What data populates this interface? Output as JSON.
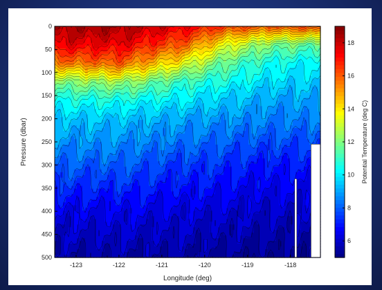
{
  "chart_data": {
    "type": "heatmap",
    "title": "",
    "xlabel": "Longitude (deg)",
    "ylabel": "Pressure (dbar)",
    "colorbar_label": "Potential Temperature (deg C)",
    "xlim": [
      -123.5,
      -117.3
    ],
    "ylim": [
      500,
      0
    ],
    "y_inverted": true,
    "x_ticks": [
      "-123",
      "-122",
      "-121",
      "-120",
      "-119",
      "-118"
    ],
    "x_tick_values": [
      -123,
      -122,
      -121,
      -120,
      -119,
      -118
    ],
    "y_ticks": [
      "0",
      "50",
      "100",
      "150",
      "200",
      "250",
      "300",
      "350",
      "400",
      "450",
      "500"
    ],
    "y_tick_values": [
      0,
      50,
      100,
      150,
      200,
      250,
      300,
      350,
      400,
      450,
      500
    ],
    "color_range": [
      5,
      19
    ],
    "colorbar_ticks": [
      "6",
      "8",
      "10",
      "12",
      "14",
      "16",
      "18"
    ],
    "colorbar_tick_values": [
      6,
      8,
      10,
      12,
      14,
      16,
      18
    ],
    "colormap": "jet",
    "contour_interval": 0.5,
    "temperature_profiles": [
      {
        "longitude": -123.5,
        "depth": [
          0,
          40,
          80,
          120,
          160,
          200,
          300,
          400,
          500
        ],
        "temperature": [
          18.5,
          17.5,
          15.5,
          12.0,
          10.5,
          9.5,
          8.0,
          6.5,
          5.5
        ]
      },
      {
        "longitude": -122.0,
        "depth": [
          0,
          40,
          80,
          120,
          160,
          200,
          300,
          400,
          500
        ],
        "temperature": [
          18.5,
          17.5,
          16.0,
          12.5,
          10.5,
          9.5,
          8.0,
          6.5,
          5.5
        ]
      },
      {
        "longitude": -120.5,
        "depth": [
          0,
          40,
          80,
          120,
          160,
          200,
          300,
          400,
          500
        ],
        "temperature": [
          17.5,
          16.0,
          13.5,
          11.0,
          10.0,
          9.0,
          7.5,
          6.3,
          5.5
        ]
      },
      {
        "longitude": -119.5,
        "depth": [
          0,
          40,
          80,
          120,
          160,
          200,
          300,
          400,
          500
        ],
        "temperature": [
          16.5,
          13.5,
          11.5,
          10.5,
          9.5,
          8.8,
          7.3,
          6.2,
          5.3
        ]
      },
      {
        "longitude": -118.5,
        "depth": [
          0,
          40,
          80,
          120,
          160,
          200,
          300,
          400,
          500
        ],
        "temperature": [
          16.0,
          12.0,
          10.5,
          9.8,
          9.0,
          8.5,
          7.0,
          6.0,
          5.2
        ]
      },
      {
        "longitude": -117.3,
        "depth": [
          0,
          40,
          80,
          120,
          160,
          200,
          300,
          400,
          500
        ],
        "temperature": [
          16.5,
          11.5,
          10.0,
          9.5,
          9.0,
          8.5,
          7.0,
          6.0,
          5.2
        ]
      }
    ],
    "no_data_regions": [
      {
        "x": [
          -117.9,
          -117.85
        ],
        "y": [
          330,
          500
        ]
      },
      {
        "x": [
          -117.52,
          -117.3
        ],
        "y": [
          255,
          500
        ]
      }
    ]
  }
}
